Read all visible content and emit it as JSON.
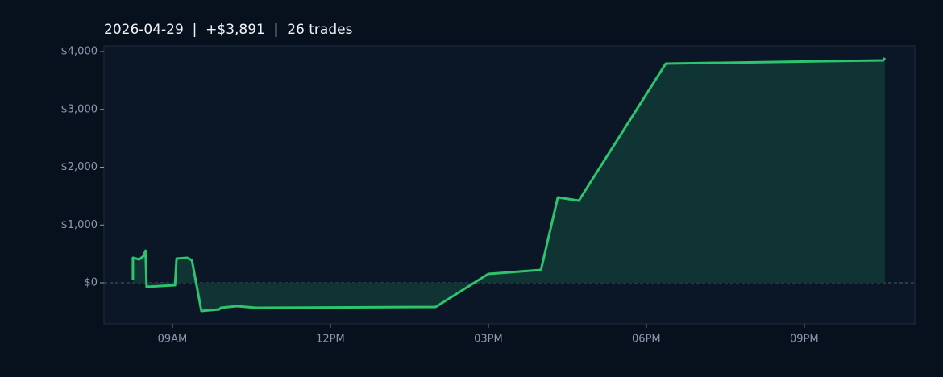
{
  "chart_data": {
    "type": "line",
    "title": "2026-04-29  |  +$3,891  |  26 trades",
    "x": [
      8.25,
      8.25,
      8.37,
      8.45,
      8.49,
      8.51,
      9.05,
      9.08,
      9.28,
      9.34,
      9.37,
      9.55,
      9.89,
      9.92,
      10.22,
      10.59,
      14.0,
      15.0,
      16.0,
      16.32,
      16.72,
      18.37,
      22.5,
      22.53
    ],
    "series": [
      {
        "color": "#2ec46d",
        "fill": "#0f3433",
        "values": [
          56,
          432,
          404,
          460,
          557,
          -70,
          -42,
          418,
          432,
          404,
          390,
          -488,
          -460,
          -432,
          -404,
          -432,
          -418,
          153,
          223,
          1477,
          1422,
          3791,
          3847,
          3891
        ]
      }
    ],
    "xlim": [
      7.7,
      23.1
    ],
    "xticks": [
      {
        "value": 9,
        "label": "09AM"
      },
      {
        "value": 12,
        "label": "12PM"
      },
      {
        "value": 15,
        "label": "03PM"
      },
      {
        "value": 18,
        "label": "06PM"
      },
      {
        "value": 21,
        "label": "09PM"
      }
    ],
    "ylim": [
      -711,
      4098
    ],
    "yticks": [
      {
        "value": 0,
        "label": "$0"
      },
      {
        "value": 1000,
        "label": "$1,000"
      },
      {
        "value": 2000,
        "label": "$2,000"
      },
      {
        "value": 3000,
        "label": "$3,000"
      },
      {
        "value": 4000,
        "label": "$4,000"
      }
    ],
    "zero_line": true
  }
}
